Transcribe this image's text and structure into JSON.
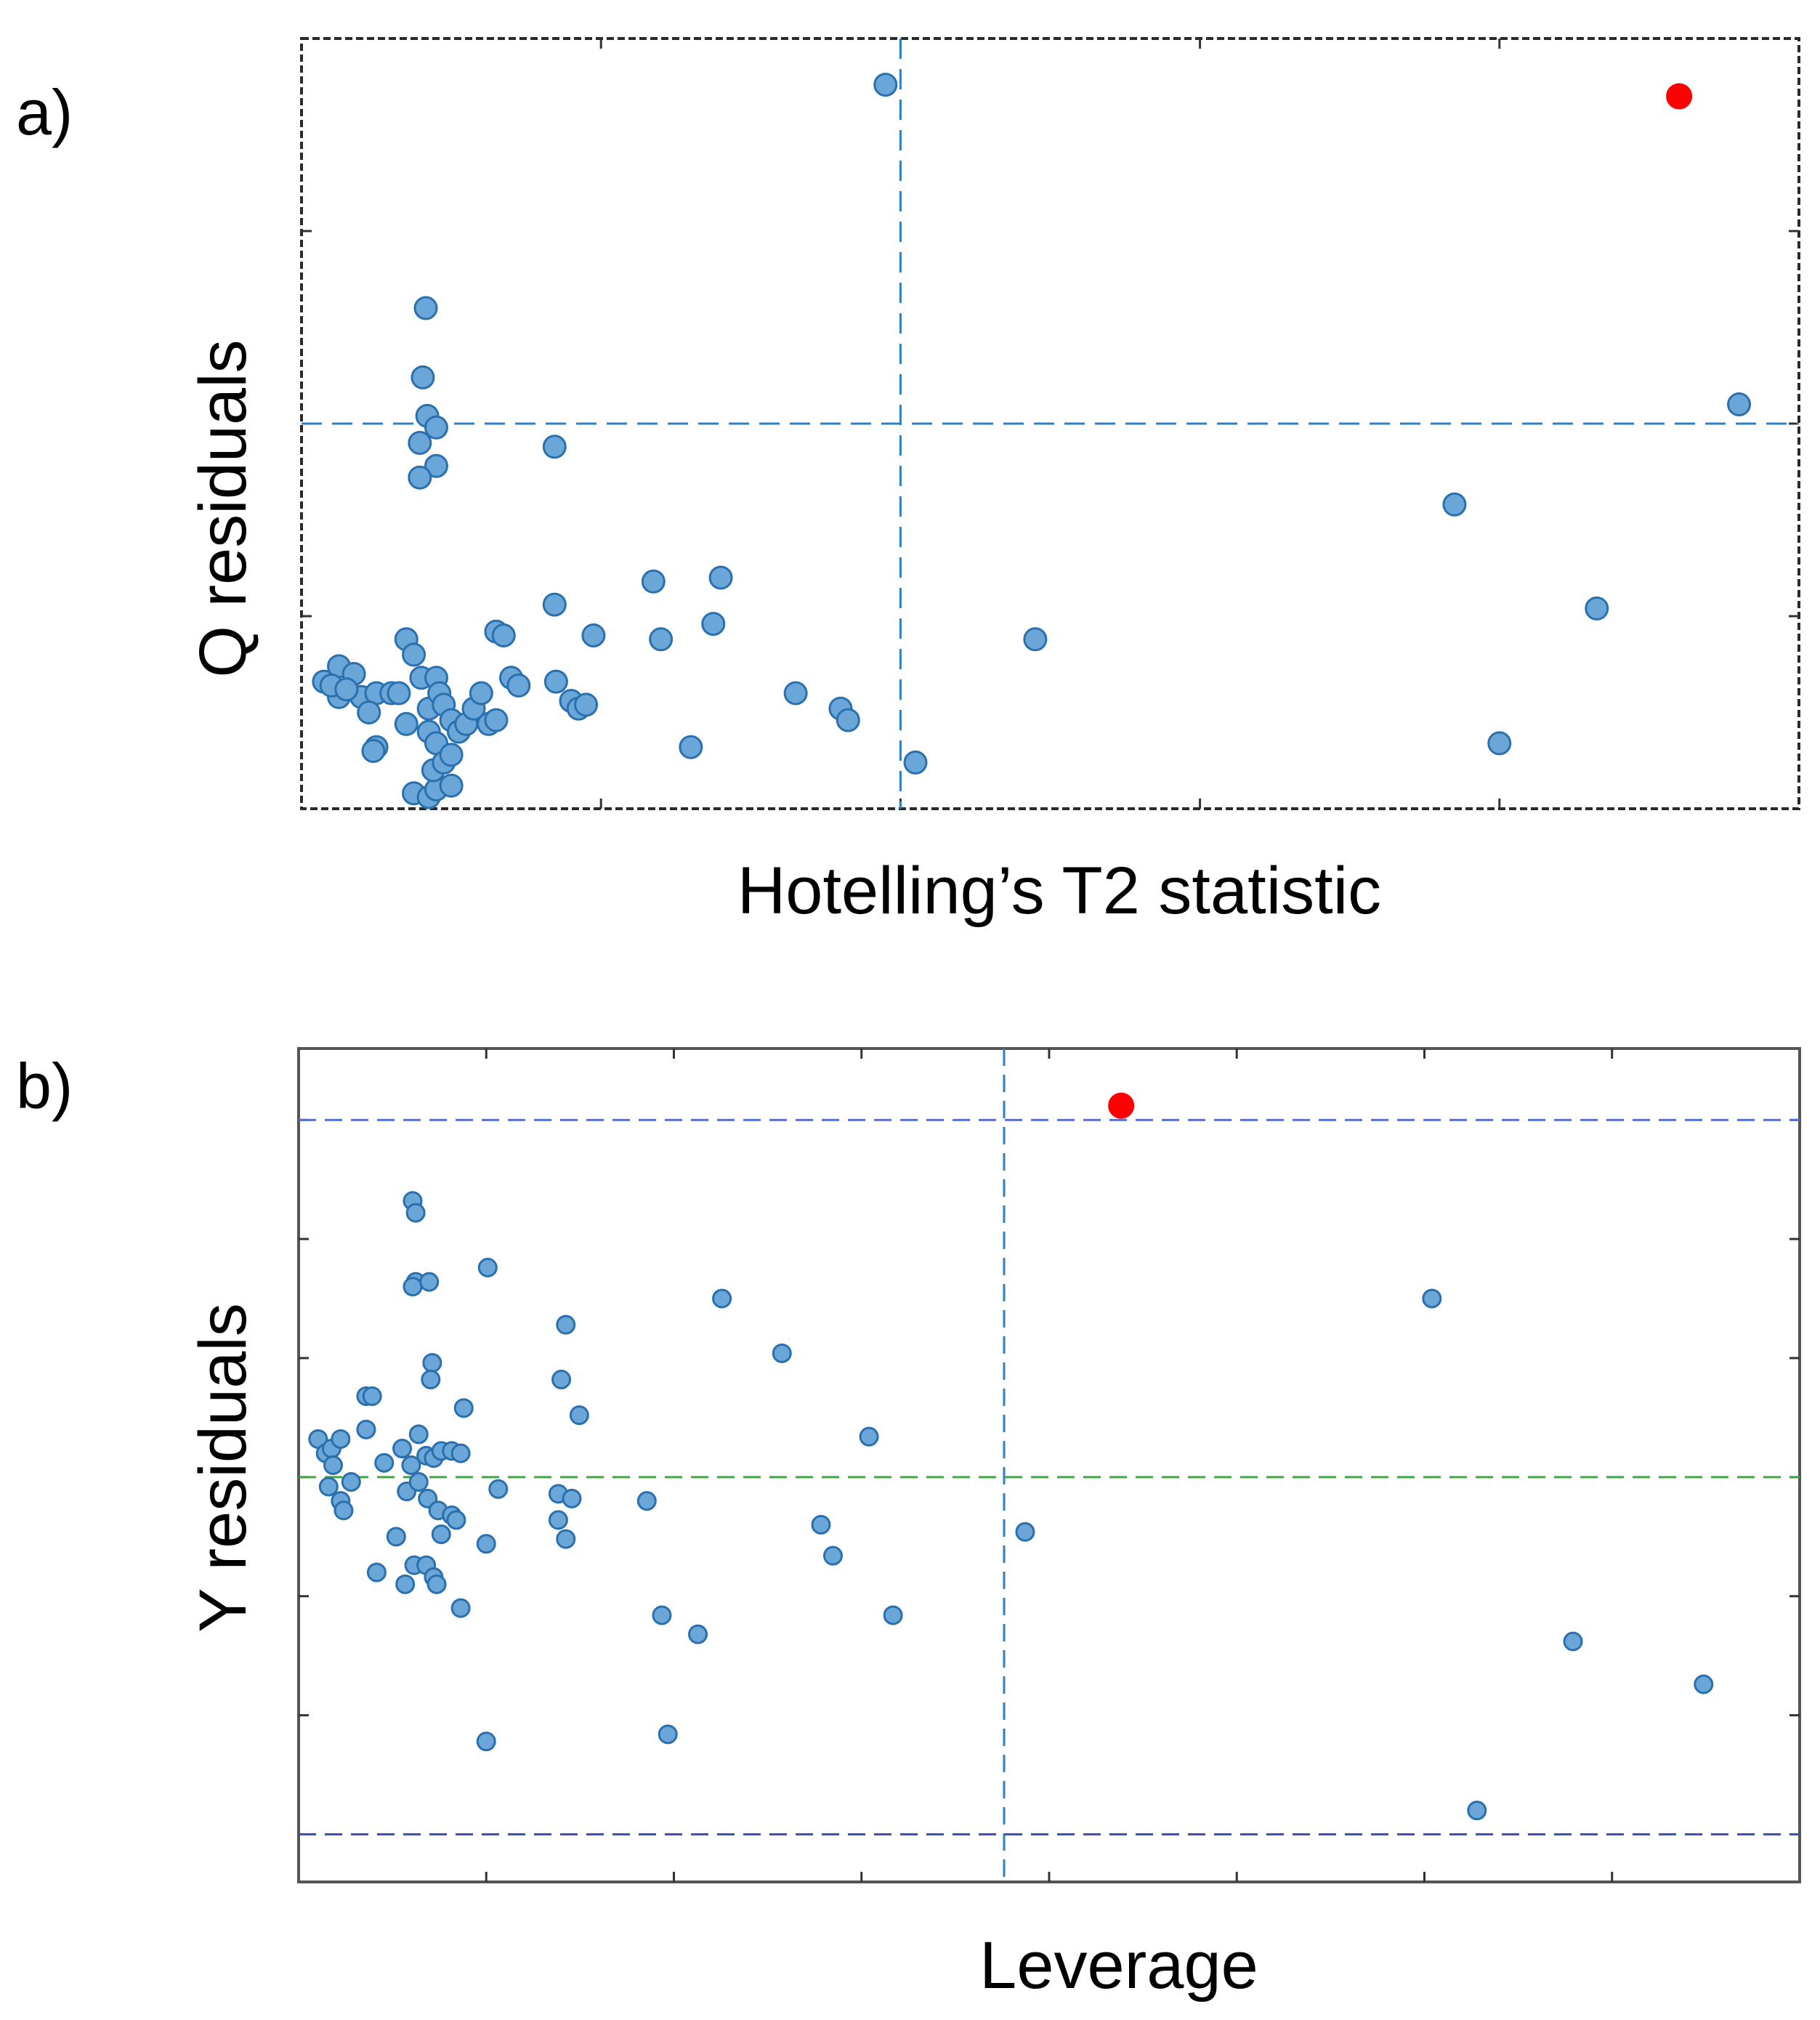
{
  "chart_data": [
    {
      "type": "scatter",
      "panel_label": "a)",
      "xlabel": "Hotelling’s T2 statistic",
      "ylabel": "Q residuals",
      "xlim": [
        0,
        100
      ],
      "ylim": [
        0,
        100
      ],
      "x_ticks": [
        0,
        20,
        40,
        60,
        80,
        100
      ],
      "y_ticks": [
        0,
        25,
        50,
        75,
        100
      ],
      "tick_labels_shown": false,
      "thresholds": {
        "x": {
          "value": 40,
          "color": "#2f7fc8"
        },
        "y": {
          "value": 50,
          "color": "#2f7fc8"
        }
      },
      "colors": {
        "point": "#6aa7d8",
        "outlier": "#ff0000"
      },
      "outlier": {
        "x": 92,
        "y": 92.5
      },
      "points": [
        [
          1.5,
          16.5
        ],
        [
          2.5,
          18.5
        ],
        [
          3.5,
          17.5
        ],
        [
          2.5,
          14.5
        ],
        [
          2,
          16
        ],
        [
          4,
          14.5
        ],
        [
          3,
          15.5
        ],
        [
          5,
          15
        ],
        [
          6,
          15
        ],
        [
          6.5,
          15
        ],
        [
          4.5,
          12.5
        ],
        [
          5,
          8
        ],
        [
          4.8,
          7.5
        ],
        [
          7,
          22
        ],
        [
          7.5,
          20
        ],
        [
          8,
          17
        ],
        [
          8.5,
          13
        ],
        [
          7,
          11
        ],
        [
          9,
          17
        ],
        [
          9.2,
          15
        ],
        [
          9.5,
          13.5
        ],
        [
          10,
          11.5
        ],
        [
          8.5,
          10
        ],
        [
          9,
          8.5
        ],
        [
          10.5,
          10
        ],
        [
          11,
          11
        ],
        [
          11.5,
          13
        ],
        [
          12,
          15
        ],
        [
          12.5,
          11
        ],
        [
          13,
          23
        ],
        [
          13.5,
          22.5
        ],
        [
          14,
          17
        ],
        [
          14.5,
          16
        ],
        [
          13,
          11.5
        ],
        [
          7.5,
          2
        ],
        [
          8.5,
          1.5
        ],
        [
          9,
          2.5
        ],
        [
          10,
          3
        ],
        [
          8.8,
          5
        ],
        [
          9.5,
          6
        ],
        [
          10,
          7
        ],
        [
          16.9,
          26.5
        ],
        [
          17,
          16.5
        ],
        [
          18,
          14
        ],
        [
          18.5,
          13
        ],
        [
          19,
          13.5
        ],
        [
          19.5,
          22.5
        ],
        [
          8.3,
          65
        ],
        [
          8.1,
          56
        ],
        [
          8.4,
          51
        ],
        [
          9.0,
          49.5
        ],
        [
          7.9,
          47.5
        ],
        [
          9.0,
          44.5
        ],
        [
          7.9,
          43
        ],
        [
          16.9,
          47
        ],
        [
          23.5,
          29.5
        ],
        [
          28,
          30
        ],
        [
          24,
          22
        ],
        [
          27.5,
          24
        ],
        [
          33,
          15
        ],
        [
          36,
          13
        ],
        [
          36.5,
          11.5
        ],
        [
          26,
          8
        ],
        [
          39,
          94
        ],
        [
          41,
          6
        ],
        [
          49,
          22
        ],
        [
          77,
          39.5
        ],
        [
          80,
          8.5
        ],
        [
          86.5,
          26
        ],
        [
          96,
          52.5
        ]
      ]
    },
    {
      "type": "scatter",
      "panel_label": "b)",
      "xlabel": "Leverage",
      "ylabel": "Y residuals",
      "xlim": [
        0,
        100
      ],
      "ylim": [
        -1.7,
        1.8
      ],
      "x_ticks": [
        0,
        12.5,
        25,
        37.5,
        50,
        62.5,
        75,
        87.5,
        100
      ],
      "y_ticks": [
        -1.5,
        -1.0,
        -0.5,
        0,
        0.5,
        1.0,
        1.5
      ],
      "tick_labels_shown": false,
      "thresholds": {
        "x": {
          "value": 47,
          "color": "#2f7fc8"
        },
        "y_upper": {
          "value": 1.5,
          "color": "#5b6fd6"
        },
        "y_lower": {
          "value": -1.5,
          "color": "#3a52b8"
        },
        "y_zero": {
          "value": 0,
          "color": "#3fa83f"
        }
      },
      "colors": {
        "point": "#6aa7d8",
        "outlier": "#ff0000"
      },
      "outlier": {
        "x": 54.8,
        "y": 1.56
      },
      "points": [
        [
          1.3,
          0.16
        ],
        [
          1.8,
          0.1
        ],
        [
          2.2,
          0.12
        ],
        [
          2.8,
          0.16
        ],
        [
          2.3,
          0.05
        ],
        [
          2.0,
          -0.04
        ],
        [
          2.8,
          -0.1
        ],
        [
          3.0,
          -0.14
        ],
        [
          3.5,
          -0.02
        ],
        [
          4.5,
          0.34
        ],
        [
          4.9,
          0.34
        ],
        [
          4.5,
          0.2
        ],
        [
          5.7,
          0.06
        ],
        [
          6.9,
          0.12
        ],
        [
          7.5,
          0.05
        ],
        [
          8.0,
          0.18
        ],
        [
          8.5,
          0.09
        ],
        [
          9.0,
          0.08
        ],
        [
          9.5,
          0.11
        ],
        [
          10.2,
          0.11
        ],
        [
          10.8,
          0.1
        ],
        [
          7.2,
          -0.06
        ],
        [
          8.0,
          -0.02
        ],
        [
          8.6,
          -0.09
        ],
        [
          9.3,
          -0.14
        ],
        [
          10.2,
          -0.16
        ],
        [
          10.5,
          -0.18
        ],
        [
          9.5,
          -0.24
        ],
        [
          12.5,
          -0.28
        ],
        [
          13.3,
          -0.05
        ],
        [
          6.5,
          -0.25
        ],
        [
          7.7,
          -0.37
        ],
        [
          8.5,
          -0.37
        ],
        [
          9.0,
          -0.42
        ],
        [
          5.2,
          -0.4
        ],
        [
          7.1,
          -0.45
        ],
        [
          9.2,
          -0.45
        ],
        [
          10.8,
          -0.55
        ],
        [
          7.6,
          1.16
        ],
        [
          7.8,
          1.11
        ],
        [
          7.8,
          0.82
        ],
        [
          7.6,
          0.8
        ],
        [
          8.7,
          0.82
        ],
        [
          8.9,
          0.48
        ],
        [
          8.8,
          0.41
        ],
        [
          11.0,
          0.29
        ],
        [
          12.6,
          0.88
        ],
        [
          17.5,
          0.41
        ],
        [
          17.8,
          0.64
        ],
        [
          18.7,
          0.26
        ],
        [
          17.3,
          -0.07
        ],
        [
          17.3,
          -0.18
        ],
        [
          17.8,
          -0.26
        ],
        [
          18.2,
          -0.09
        ],
        [
          23.2,
          -0.1
        ],
        [
          24.2,
          -0.58
        ],
        [
          24.6,
          -1.08
        ],
        [
          26.6,
          -0.66
        ],
        [
          28.2,
          0.75
        ],
        [
          32.2,
          0.52
        ],
        [
          34.8,
          -0.2
        ],
        [
          35.6,
          -0.33
        ],
        [
          38.0,
          0.17
        ],
        [
          39.6,
          -0.58
        ],
        [
          48.4,
          -0.23
        ],
        [
          12.5,
          -1.11
        ],
        [
          75.5,
          0.75
        ],
        [
          78.5,
          -1.4
        ],
        [
          84.9,
          -0.69
        ],
        [
          93.6,
          -0.87
        ]
      ]
    }
  ]
}
